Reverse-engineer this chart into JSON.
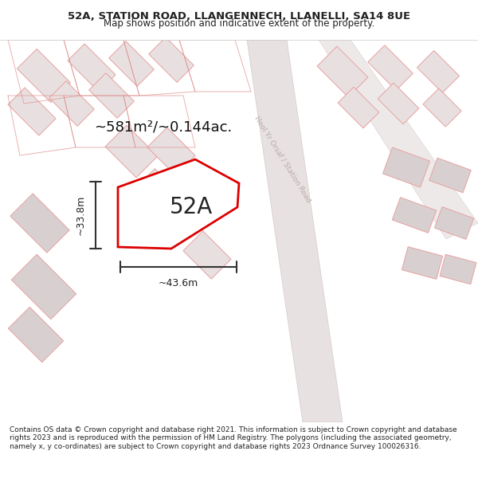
{
  "title_line1": "52A, STATION ROAD, LLANGENNECH, LLANELLI, SA14 8UE",
  "title_line2": "Map shows position and indicative extent of the property.",
  "footer_text": "Contains OS data © Crown copyright and database right 2021. This information is subject to Crown copyright and database rights 2023 and is reproduced with the permission of HM Land Registry. The polygons (including the associated geometry, namely x, y co-ordinates) are subject to Crown copyright and database rights 2023 Ordnance Survey 100026316.",
  "area_label": "~581m²/~0.144ac.",
  "property_label": "52A",
  "width_label": "~43.6m",
  "height_label": "~33.8m",
  "road_label": "Heol Yr Orsaf / Station Road",
  "background_color": "#f2eeee",
  "map_background": "#f5f0f0",
  "plot_color": "#ffffff",
  "plot_outline_color": "#dd0000",
  "road_color": "#e8dede",
  "building_outline": "#e8a0a0",
  "building_fill": "#e8e0e0",
  "dark_building_fill": "#d0c8c8",
  "text_color": "#222222",
  "dim_line_color": "#333333",
  "road_text_color": "#aaaaaa",
  "title_bg": "#ffffff",
  "footer_bg": "#ffffff"
}
